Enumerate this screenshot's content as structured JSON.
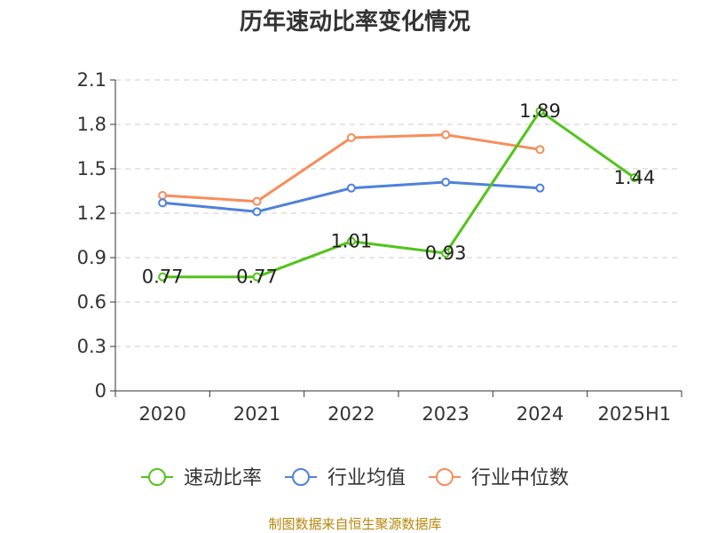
{
  "chart_data": {
    "type": "line",
    "title": "历年速动比率变化情况",
    "categories": [
      "2020",
      "2021",
      "2022",
      "2023",
      "2024",
      "2025H1"
    ],
    "series": [
      {
        "name": "速动比率",
        "color": "#52c41a",
        "values": [
          0.77,
          0.77,
          1.01,
          0.93,
          1.89,
          1.44
        ],
        "show_labels": true
      },
      {
        "name": "行业均值",
        "color": "#4f81d9",
        "values": [
          1.27,
          1.21,
          1.37,
          1.41,
          1.37,
          null
        ],
        "show_labels": false
      },
      {
        "name": "行业中位数",
        "color": "#f78d5b",
        "values": [
          1.32,
          1.28,
          1.71,
          1.73,
          1.63,
          null
        ],
        "show_labels": false
      }
    ],
    "ylim": [
      0,
      2.1
    ],
    "yticks": [
      "0",
      "0.3",
      "0.6",
      "0.9",
      "1.2",
      "1.5",
      "1.8",
      "2.1"
    ],
    "grid": true,
    "legend_position": "bottom"
  },
  "source": "制图数据来自恒生聚源数据库"
}
